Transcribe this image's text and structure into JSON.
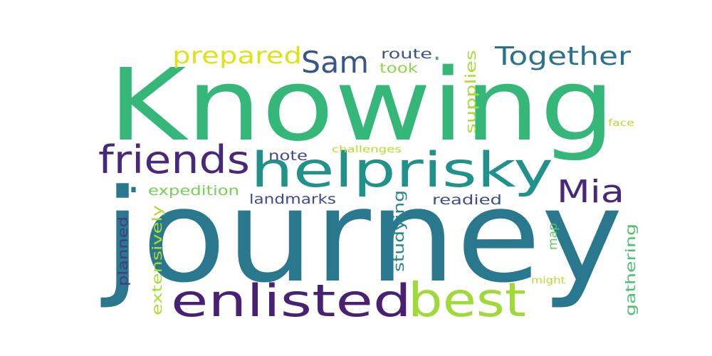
{
  "word_cloud": {
    "words": [
      {
        "text": "Knowing",
        "color": "#35b779",
        "weight": 1.0
      },
      {
        "text": "journey",
        "color": "#2a788e",
        "weight": 1.0
      },
      {
        "text": "helprisky",
        "color": "#21918c",
        "weight": 0.55
      },
      {
        "text": "friends",
        "color": "#482878",
        "weight": 0.42
      },
      {
        "text": "enlisted",
        "color": "#482173",
        "weight": 0.45
      },
      {
        "text": "best",
        "color": "#a0da39",
        "weight": 0.45
      },
      {
        "text": "Mia",
        "color": "#482878",
        "weight": 0.35
      },
      {
        "text": "Sam",
        "color": "#39568c",
        "weight": 0.32
      },
      {
        "text": "Together",
        "color": "#2c728e",
        "weight": 0.28
      },
      {
        "text": "prepared",
        "color": "#dde318",
        "weight": 0.28
      },
      {
        "text": "route",
        "color": "#3b528b",
        "weight": 0.15
      },
      {
        "text": "took",
        "color": "#8ed645",
        "weight": 0.15
      },
      {
        "text": "supplies",
        "color": "#a8db34",
        "weight": 0.16
      },
      {
        "text": "note",
        "color": "#3e4a89",
        "weight": 0.15
      },
      {
        "text": "challenges",
        "color": "#b5de2b",
        "weight": 0.1
      },
      {
        "text": "face",
        "color": "#b5de2b",
        "weight": 0.1
      },
      {
        "text": "expedition",
        "color": "#75d054",
        "weight": 0.15
      },
      {
        "text": "landmarks",
        "color": "#3e4a89",
        "weight": 0.15
      },
      {
        "text": "readied",
        "color": "#3e4c8a",
        "weight": 0.15
      },
      {
        "text": "studying",
        "color": "#25858e",
        "weight": 0.15
      },
      {
        "text": "map",
        "color": "#5ec962",
        "weight": 0.13
      },
      {
        "text": "gathering",
        "color": "#4ac16d",
        "weight": 0.15
      },
      {
        "text": "extensively",
        "color": "#addc30",
        "weight": 0.15
      },
      {
        "text": "planned",
        "color": "#443a83",
        "weight": 0.15
      },
      {
        "text": "might",
        "color": "#b5de2b",
        "weight": 0.1
      },
      {
        "text": ".",
        "color": "#2a788e",
        "weight": 0.5
      },
      {
        "text": ".",
        "color": "#35b779",
        "weight": 0.3
      }
    ]
  }
}
